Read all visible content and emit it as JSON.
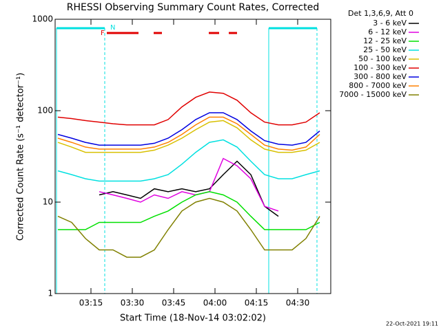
{
  "chart_data": {
    "type": "line",
    "title": "RHESSI Observing Summary Count Rates, Corrected",
    "xlabel": "Start Time (18-Nov-14 03:02:02)",
    "ylabel": "Corrected Count Rate (s⁻¹ detector⁻¹)",
    "legend_title": "Det 1,3,6,9, Att 0",
    "footer": "22-Oct-2021 19:11",
    "annotations": [
      "N",
      "F"
    ],
    "log_y": true,
    "x": [
      3,
      8,
      13,
      18,
      23,
      28,
      33,
      38,
      43,
      48,
      53,
      58,
      63,
      68,
      73,
      78,
      83,
      88,
      93,
      98
    ],
    "xlim": [
      2,
      102
    ],
    "xticks": [
      {
        "value": 15,
        "label": "03:15"
      },
      {
        "value": 30,
        "label": "03:30"
      },
      {
        "value": 45,
        "label": "03:45"
      },
      {
        "value": 60,
        "label": "04:00"
      },
      {
        "value": 75,
        "label": "04:15"
      },
      {
        "value": 90,
        "label": "04:30"
      }
    ],
    "ylim": [
      1,
      1000
    ],
    "yticks": [
      1,
      10,
      100,
      1000
    ],
    "series": [
      {
        "name": "3 - 6 keV",
        "color": "#000000",
        "values": [
          null,
          null,
          null,
          12,
          13,
          12,
          11,
          14,
          13,
          14,
          13,
          14,
          20,
          28,
          20,
          9,
          7,
          null,
          null,
          null
        ]
      },
      {
        "name": "6 - 12 keV",
        "color": "#e000e0",
        "values": [
          null,
          null,
          null,
          13,
          12,
          11,
          10,
          12,
          11,
          13,
          12,
          13,
          30,
          25,
          18,
          9,
          8,
          null,
          null,
          null
        ]
      },
      {
        "name": "12 - 25 keV",
        "color": "#00e000",
        "values": [
          5,
          5,
          5,
          6,
          6,
          6,
          6,
          7,
          8,
          10,
          12,
          13,
          12,
          10,
          7,
          5,
          5,
          5,
          5,
          6
        ]
      },
      {
        "name": "25 - 50 keV",
        "color": "#00e0e0",
        "values": [
          22,
          20,
          18,
          17,
          17,
          17,
          17,
          18,
          20,
          26,
          35,
          45,
          48,
          40,
          28,
          20,
          18,
          18,
          20,
          22
        ]
      },
      {
        "name": "50 - 100 keV",
        "color": "#d8c000",
        "values": [
          45,
          40,
          35,
          35,
          35,
          35,
          35,
          37,
          42,
          50,
          62,
          75,
          78,
          65,
          48,
          38,
          35,
          35,
          37,
          45
        ]
      },
      {
        "name": "100 - 300 keV",
        "color": "#e00000",
        "values": [
          85,
          82,
          78,
          75,
          72,
          70,
          70,
          70,
          80,
          110,
          140,
          160,
          155,
          130,
          95,
          75,
          70,
          70,
          75,
          95
        ]
      },
      {
        "name": "300 - 800 keV",
        "color": "#0000e0",
        "values": [
          55,
          50,
          45,
          42,
          42,
          42,
          42,
          44,
          50,
          62,
          80,
          95,
          95,
          80,
          60,
          47,
          43,
          42,
          45,
          60
        ]
      },
      {
        "name": "800 - 7000 keV",
        "color": "#ff8000",
        "values": [
          50,
          45,
          40,
          38,
          38,
          38,
          38,
          40,
          45,
          55,
          70,
          85,
          85,
          72,
          55,
          42,
          38,
          37,
          40,
          55
        ]
      },
      {
        "name": "7000 - 15000 keV",
        "color": "#808000",
        "values": [
          7,
          6,
          4,
          3,
          3,
          2.5,
          2.5,
          3,
          5,
          8,
          10,
          11,
          10,
          8,
          5,
          3,
          3,
          3,
          4,
          7
        ]
      }
    ]
  }
}
